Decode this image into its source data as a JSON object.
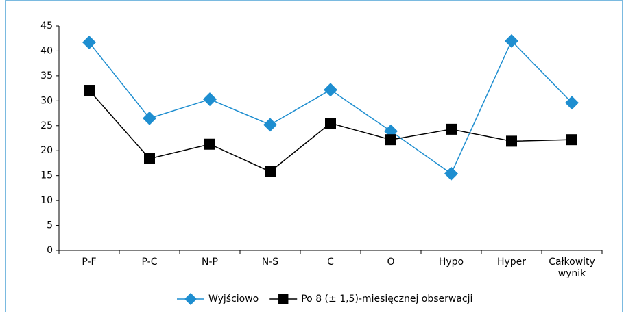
{
  "chart_data": {
    "type": "line",
    "categories": [
      "P-F",
      "P-C",
      "N-P",
      "N-S",
      "C",
      "O",
      "Hypo",
      "Hyper",
      "Całkowity wynik"
    ],
    "series": [
      {
        "name": "Wyjściowo",
        "color": "#1e8ed0",
        "marker": "diamond",
        "values": [
          41.7,
          26.5,
          30.3,
          25.2,
          32.2,
          23.9,
          15.4,
          42.0,
          29.6
        ]
      },
      {
        "name": "Po 8 (± 1,5)-miesięcznej obserwacji",
        "color": "#000000",
        "marker": "square",
        "values": [
          32.1,
          18.4,
          21.3,
          15.8,
          25.5,
          22.2,
          24.3,
          21.9,
          22.2
        ]
      }
    ],
    "ylim": [
      0,
      45
    ],
    "yticks": [
      0,
      5,
      10,
      15,
      20,
      25,
      30,
      35,
      40,
      45
    ],
    "legend": "bottom"
  }
}
